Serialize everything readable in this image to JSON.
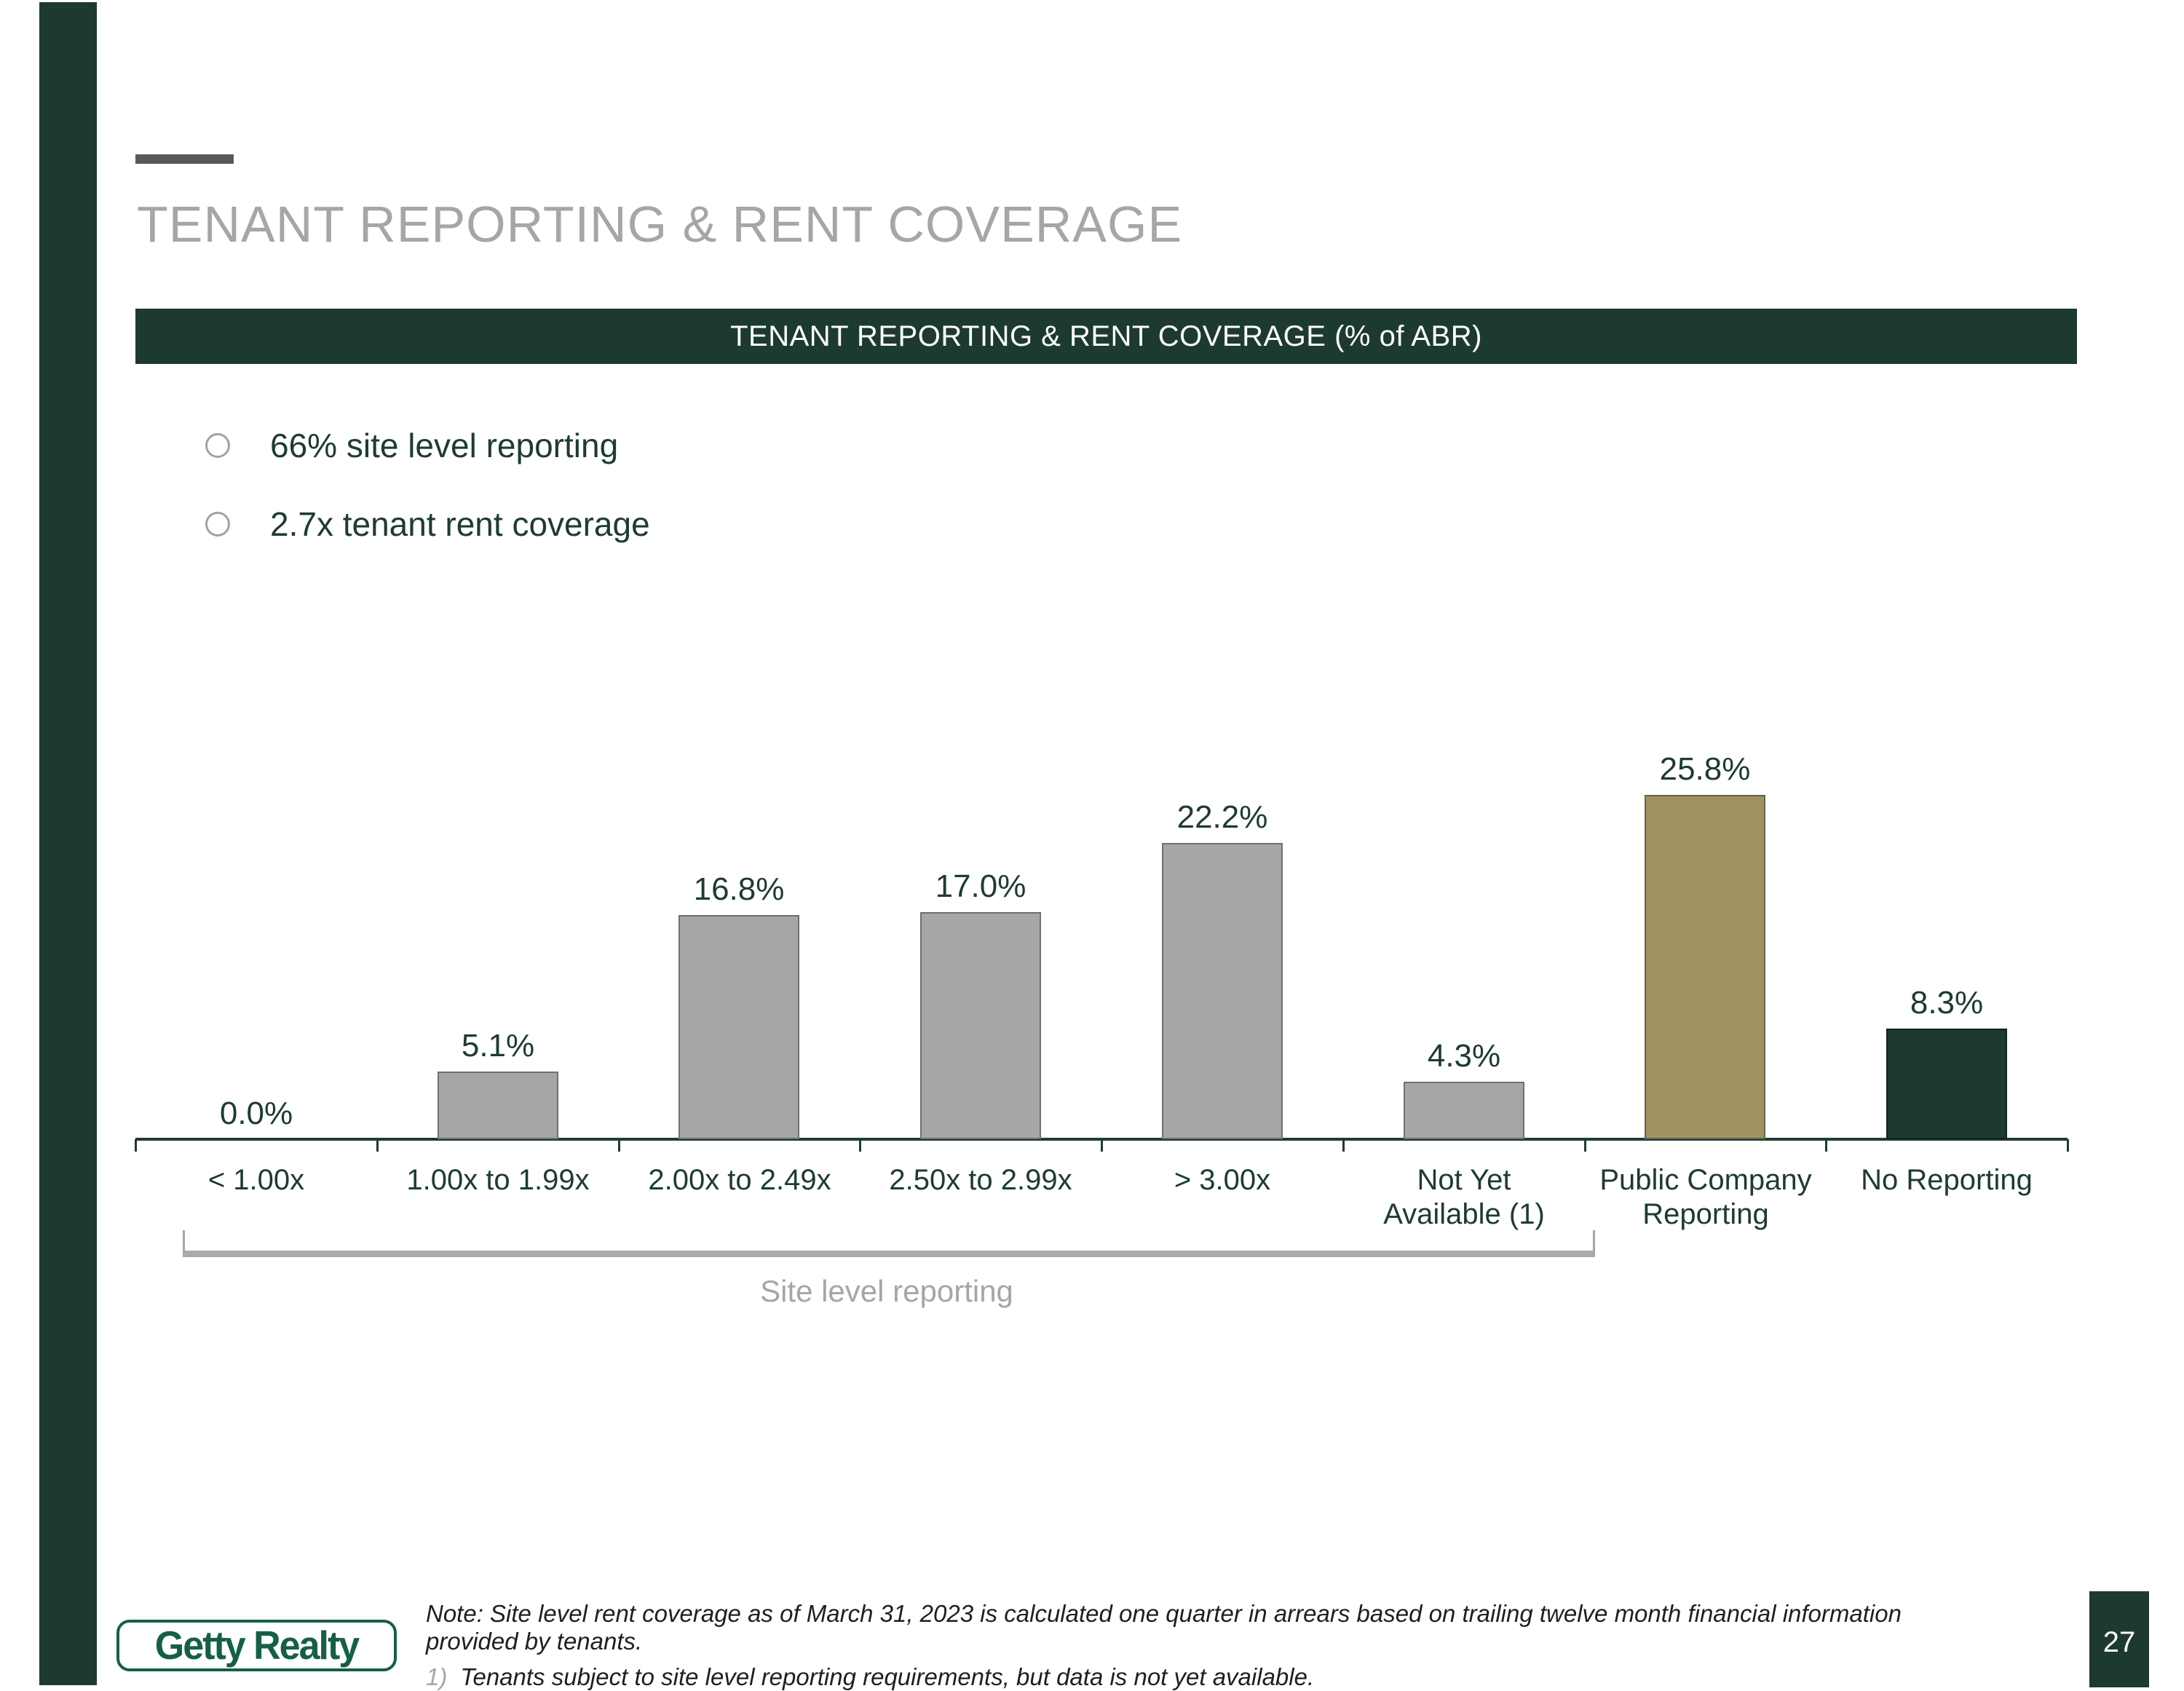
{
  "header": {
    "title": "TENANT REPORTING & RENT COVERAGE"
  },
  "banner": {
    "title": "TENANT REPORTING & RENT COVERAGE (% of ABR)"
  },
  "bullets": [
    {
      "text": "66% site level reporting"
    },
    {
      "text": "2.7x tenant rent coverage"
    }
  ],
  "chart_data": {
    "type": "bar",
    "title": "TENANT REPORTING & RENT COVERAGE (% of ABR)",
    "categories": [
      "< 1.00x",
      "1.00x to 1.99x",
      "2.00x to 2.49x",
      "2.50x to 2.99x",
      "> 3.00x",
      "Not Yet\nAvailable (1)",
      "Public Company\nReporting",
      "No Reporting"
    ],
    "values": [
      0.0,
      5.1,
      16.8,
      17.0,
      22.2,
      4.3,
      25.8,
      8.3
    ],
    "data_labels": [
      "0.0%",
      "5.1%",
      "16.8%",
      "17.0%",
      "22.2%",
      "4.3%",
      "25.8%",
      "8.3%"
    ],
    "bar_colors": [
      "#a6a6a6",
      "#a6a6a6",
      "#a6a6a6",
      "#a6a6a6",
      "#a6a6a6",
      "#a6a6a6",
      "#a19162",
      "#1d3a31"
    ],
    "bar_border_colors": [
      "#6f6f6f",
      "#6f6f6f",
      "#6f6f6f",
      "#6f6f6f",
      "#6f6f6f",
      "#6f6f6f",
      "#65644a",
      "#10241e"
    ],
    "xlabel": "",
    "ylabel": "",
    "ylim": [
      0,
      27
    ],
    "grid": false,
    "legend": "none",
    "group_bracket": {
      "label": "Site level reporting",
      "span_categories": [
        0,
        5
      ]
    }
  },
  "footer": {
    "logo_text": "Getty Realty",
    "note_line1": "Note: Site level rent coverage as of March 31, 2023 is calculated one quarter in arrears based on trailing twelve month financial information provided by tenants.",
    "note_ref": "1)",
    "note_line2": "Tenants subject to site level reporting requirements, but data is not yet available.",
    "page_number": "27"
  },
  "colors": {
    "accent_green": "#1d3a31",
    "logo_green": "#156045",
    "gold": "#a19162",
    "bar_gray": "#a6a6a6",
    "title_gray": "#a6a6a6",
    "dash_gray": "#595959"
  }
}
